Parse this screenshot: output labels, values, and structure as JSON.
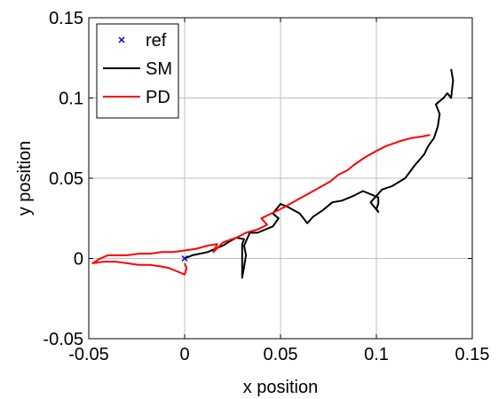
{
  "chart_data": {
    "type": "line",
    "title": "",
    "xlabel": "x position",
    "ylabel": "y position",
    "xlim": [
      -0.05,
      0.15
    ],
    "ylim": [
      -0.05,
      0.15
    ],
    "xticks": [
      "-0.05",
      "0",
      "0.05",
      "0.1",
      "0.15"
    ],
    "yticks": [
      "-0.05",
      "0",
      "0.05",
      "0.1",
      "0.15"
    ],
    "xtick_values": [
      -0.05,
      0,
      0.05,
      0.1,
      0.15
    ],
    "ytick_values": [
      -0.05,
      0,
      0.05,
      0.1,
      0.15
    ],
    "grid": true,
    "legend_position": "top-left",
    "series": [
      {
        "name": "ref",
        "kind": "marker",
        "marker": "x",
        "color": "#0000cc",
        "points": [
          [
            0,
            0
          ]
        ]
      },
      {
        "name": "SM",
        "kind": "line",
        "color": "#000000",
        "points": [
          [
            0.0,
            0.0
          ],
          [
            0.004,
            0.002
          ],
          [
            0.008,
            0.003
          ],
          [
            0.012,
            0.004
          ],
          [
            0.016,
            0.006
          ],
          [
            0.02,
            0.008
          ],
          [
            0.024,
            0.011
          ],
          [
            0.027,
            0.013
          ],
          [
            0.031,
            0.012
          ],
          [
            0.03,
            0.009
          ],
          [
            0.03,
            -0.002
          ],
          [
            0.03,
            -0.012
          ],
          [
            0.031,
            -0.005
          ],
          [
            0.032,
            0.002
          ],
          [
            0.031,
            0.008
          ],
          [
            0.034,
            0.016
          ],
          [
            0.038,
            0.016
          ],
          [
            0.046,
            0.02
          ],
          [
            0.049,
            0.025
          ],
          [
            0.046,
            0.028
          ],
          [
            0.05,
            0.034
          ],
          [
            0.054,
            0.032
          ],
          [
            0.06,
            0.028
          ],
          [
            0.064,
            0.022
          ],
          [
            0.067,
            0.026
          ],
          [
            0.072,
            0.03
          ],
          [
            0.077,
            0.035
          ],
          [
            0.082,
            0.036
          ],
          [
            0.088,
            0.039
          ],
          [
            0.093,
            0.042
          ],
          [
            0.101,
            0.038
          ],
          [
            0.101,
            0.034
          ],
          [
            0.1,
            0.031
          ],
          [
            0.101,
            0.029
          ],
          [
            0.097,
            0.035
          ],
          [
            0.103,
            0.043
          ],
          [
            0.108,
            0.045
          ],
          [
            0.115,
            0.05
          ],
          [
            0.12,
            0.058
          ],
          [
            0.125,
            0.065
          ],
          [
            0.127,
            0.07
          ],
          [
            0.13,
            0.075
          ],
          [
            0.132,
            0.082
          ],
          [
            0.133,
            0.09
          ],
          [
            0.131,
            0.096
          ],
          [
            0.135,
            0.1
          ],
          [
            0.137,
            0.103
          ],
          [
            0.139,
            0.1
          ],
          [
            0.14,
            0.111
          ],
          [
            0.139,
            0.118
          ]
        ]
      },
      {
        "name": "PD",
        "kind": "line",
        "color": "#ff0000",
        "points": [
          [
            0.0,
            -0.003
          ],
          [
            0.001,
            -0.006
          ],
          [
            0.0,
            -0.01
          ],
          [
            -0.004,
            -0.008
          ],
          [
            -0.008,
            -0.006
          ],
          [
            -0.012,
            -0.005
          ],
          [
            -0.018,
            -0.004
          ],
          [
            -0.024,
            -0.004
          ],
          [
            -0.03,
            -0.003
          ],
          [
            -0.036,
            -0.002
          ],
          [
            -0.042,
            -0.002
          ],
          [
            -0.048,
            -0.003
          ],
          [
            -0.044,
            0.0
          ],
          [
            -0.04,
            0.002
          ],
          [
            -0.035,
            0.002
          ],
          [
            -0.03,
            0.002
          ],
          [
            -0.024,
            0.003
          ],
          [
            -0.018,
            0.003
          ],
          [
            -0.012,
            0.004
          ],
          [
            -0.006,
            0.004
          ],
          [
            0.0,
            0.005
          ],
          [
            0.006,
            0.006
          ],
          [
            0.012,
            0.008
          ],
          [
            0.017,
            0.009
          ],
          [
            0.015,
            0.004
          ],
          [
            0.02,
            0.01
          ],
          [
            0.027,
            0.013
          ],
          [
            0.032,
            0.016
          ],
          [
            0.038,
            0.018
          ],
          [
            0.043,
            0.021
          ],
          [
            0.04,
            0.025
          ],
          [
            0.047,
            0.029
          ],
          [
            0.052,
            0.032
          ],
          [
            0.058,
            0.036
          ],
          [
            0.064,
            0.04
          ],
          [
            0.07,
            0.044
          ],
          [
            0.076,
            0.048
          ],
          [
            0.08,
            0.052
          ],
          [
            0.085,
            0.055
          ],
          [
            0.088,
            0.058
          ],
          [
            0.094,
            0.063
          ],
          [
            0.1,
            0.067
          ],
          [
            0.105,
            0.07
          ],
          [
            0.112,
            0.073
          ],
          [
            0.118,
            0.075
          ],
          [
            0.124,
            0.076
          ],
          [
            0.128,
            0.077
          ]
        ]
      }
    ]
  }
}
